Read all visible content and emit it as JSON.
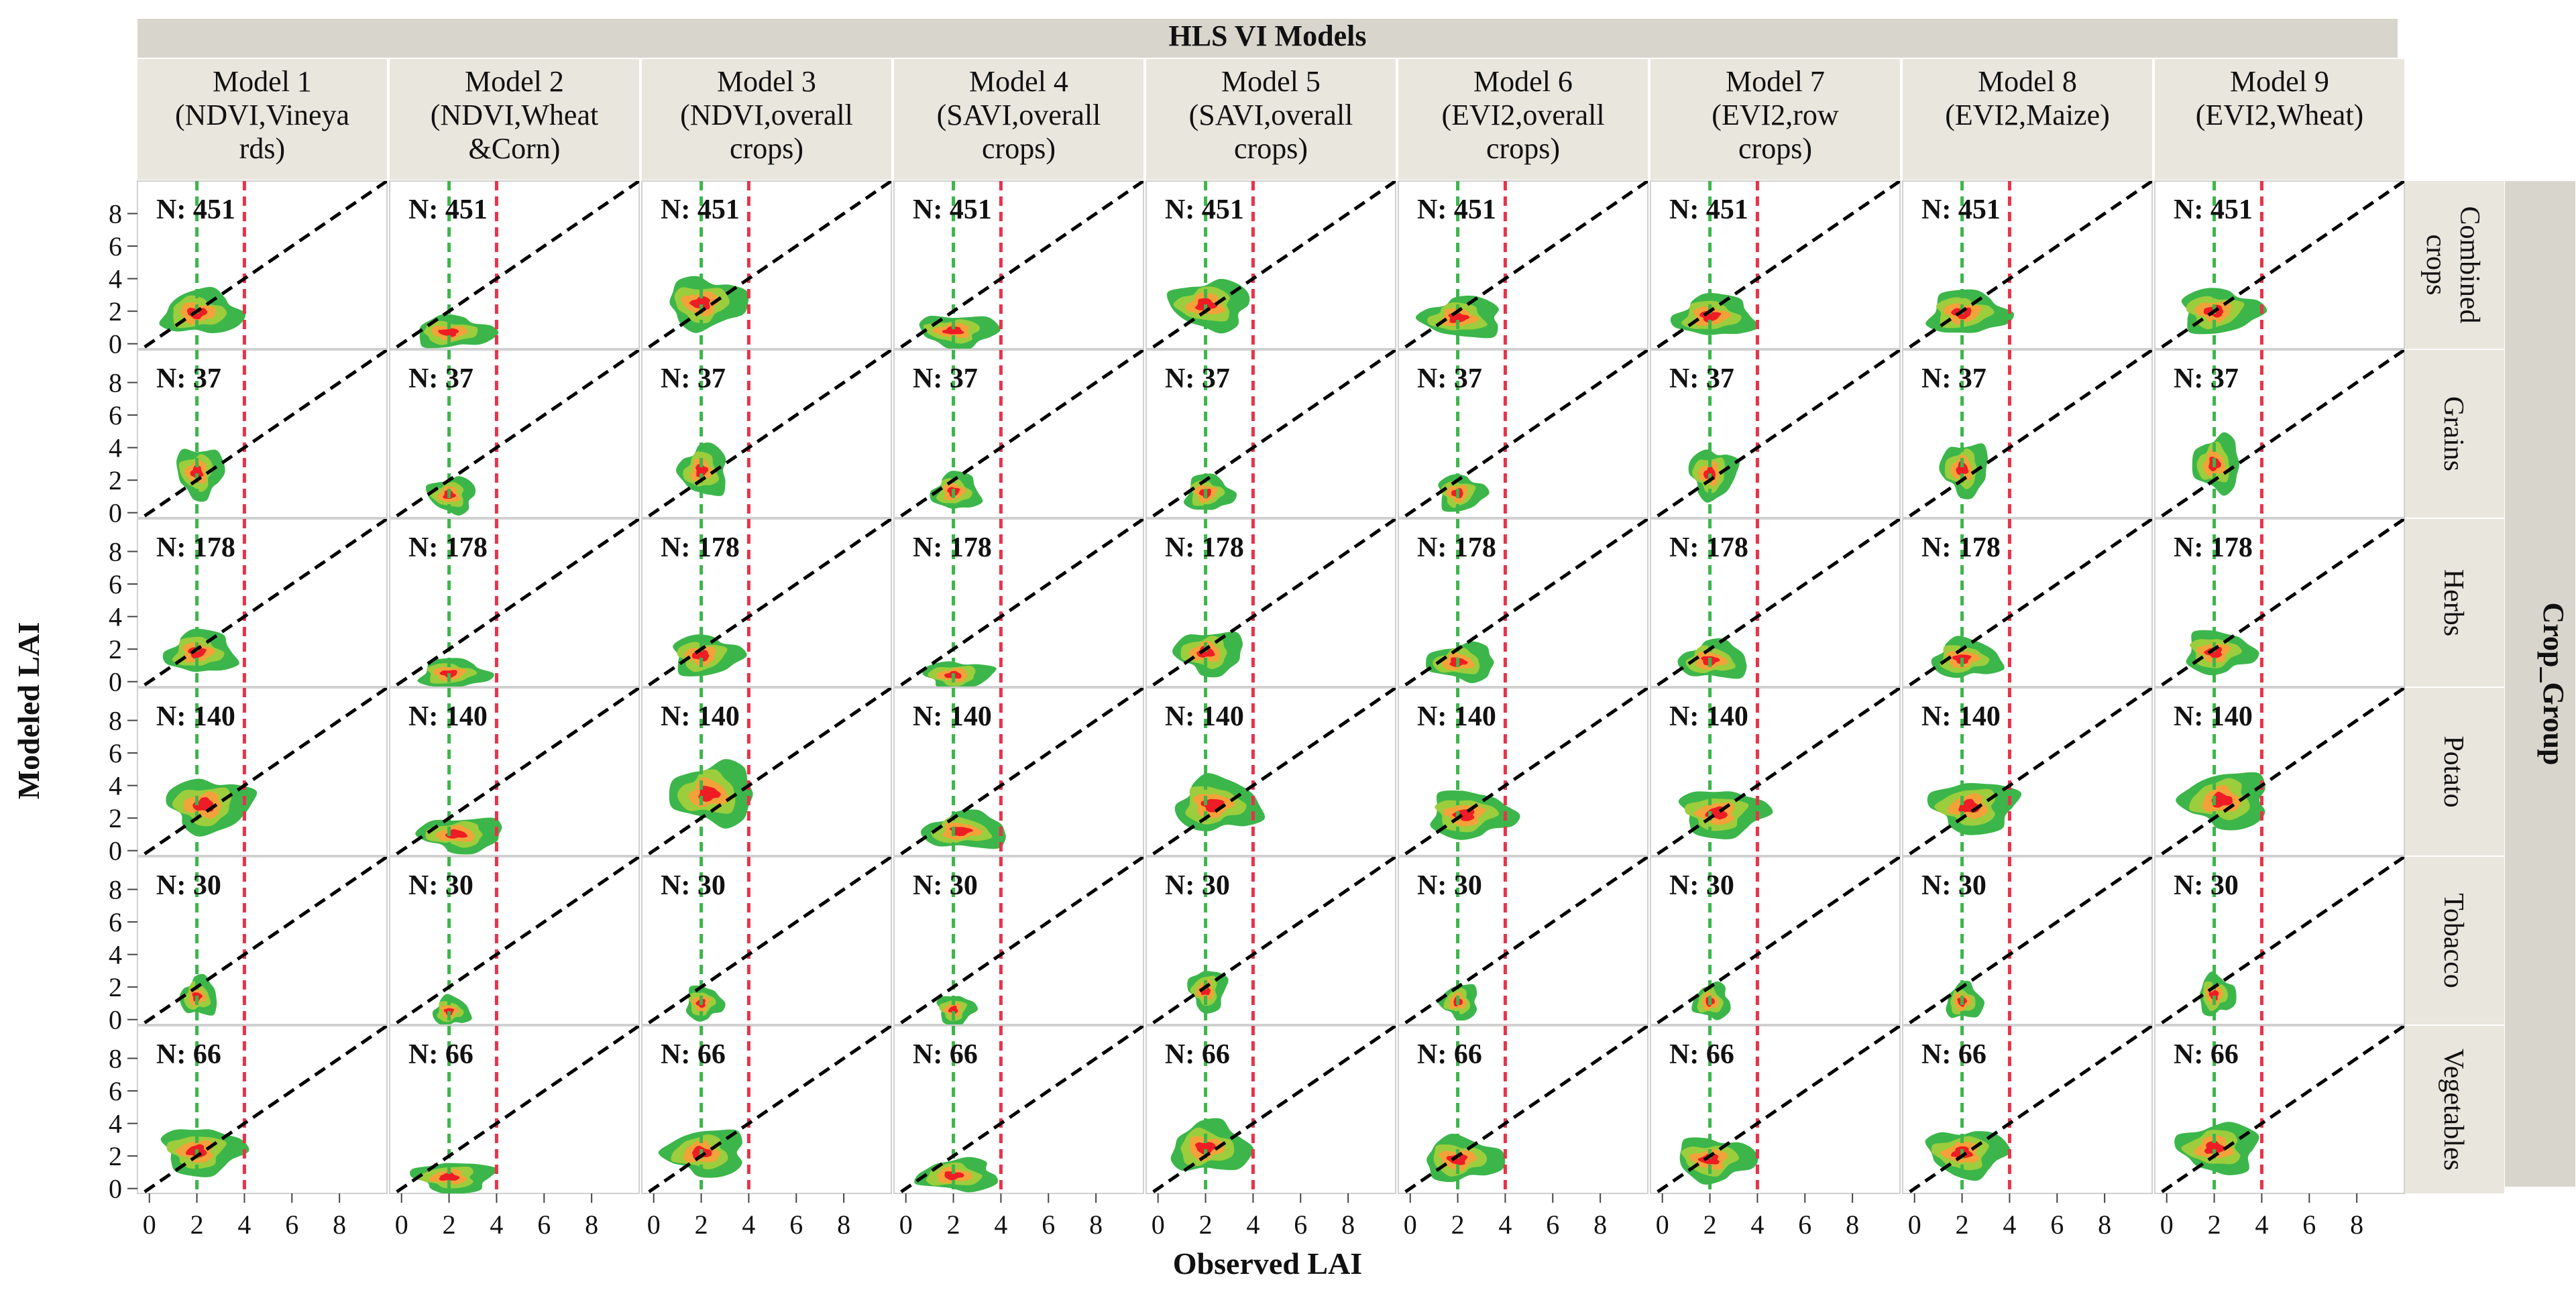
{
  "colors": {
    "outer_density": "#3cb64a",
    "mid_density": "#9ccd3c",
    "inner_density": "#f3a23a",
    "core_density": "#ee1c25",
    "green_reference_line": "#3cb64a",
    "red_reference_line": "#e8334a",
    "identity_line": "#000000",
    "strip_background": "#e8e6dd",
    "outer_strip_background": "#d8d6cc"
  },
  "chart_data": {
    "type": "contour-density-facet-grid",
    "title": "HLS VI Models",
    "xlabel": "Observed LAI",
    "ylabel": "Modeled LAI",
    "row_group_label": "Crop_Group",
    "xlim": [
      -0.5,
      10
    ],
    "ylim": [
      -0.3,
      10
    ],
    "x_ticks": [
      "0",
      "2",
      "4",
      "6",
      "8"
    ],
    "y_ticks": [
      "0",
      "2",
      "4",
      "6",
      "8"
    ],
    "reference_lines": {
      "green_vertical_x": 2,
      "red_vertical_x": 4,
      "diagonal": "1:1 line (y = x)"
    },
    "columns": [
      {
        "label": [
          "Model 1",
          "(NDVI,Vineya",
          "rds)"
        ]
      },
      {
        "label": [
          "Model 2",
          "(NDVI,Wheat",
          "&Corn)"
        ]
      },
      {
        "label": [
          "Model 3",
          "(NDVI,overall",
          "crops)"
        ]
      },
      {
        "label": [
          "Model 4",
          "(SAVI,overall",
          "crops)"
        ]
      },
      {
        "label": [
          "Model 5",
          "(SAVI,overall",
          "crops)"
        ]
      },
      {
        "label": [
          "Model 6",
          "(EVI2,overall",
          "crops)"
        ]
      },
      {
        "label": [
          "Model 7",
          "(EVI2,row",
          "crops)"
        ]
      },
      {
        "label": [
          "Model 8",
          "(EVI2,Maize)"
        ]
      },
      {
        "label": [
          "Model 9",
          "(EVI2,Wheat)"
        ]
      }
    ],
    "rows": [
      {
        "label": [
          "Combined",
          "crops"
        ],
        "n_label": "N: 451"
      },
      {
        "label": [
          "Grains"
        ],
        "n_label": "N: 37"
      },
      {
        "label": [
          "Herbs"
        ],
        "n_label": "N: 178"
      },
      {
        "label": [
          "Potato"
        ],
        "n_label": "N: 140"
      },
      {
        "label": [
          "Tobacco"
        ],
        "n_label": "N: 30"
      },
      {
        "label": [
          "Vegetables"
        ],
        "n_label": "N: 66"
      }
    ],
    "density_centers_modeled_lai": [
      [
        1.9,
        0.7,
        2.5,
        0.8,
        2.4,
        1.6,
        1.7,
        1.9,
        2.0
      ],
      [
        2.5,
        1.1,
        2.6,
        1.3,
        1.2,
        1.2,
        2.4,
        2.7,
        3.0
      ],
      [
        1.8,
        0.5,
        1.6,
        0.4,
        1.8,
        1.2,
        1.3,
        1.4,
        1.8
      ],
      [
        2.8,
        1.0,
        3.5,
        1.2,
        2.8,
        2.2,
        2.3,
        2.7,
        3.1
      ],
      [
        1.4,
        0.5,
        1.0,
        0.6,
        1.8,
        1.1,
        1.1,
        1.1,
        1.5
      ],
      [
        2.3,
        0.7,
        2.2,
        0.8,
        2.5,
        1.8,
        1.8,
        2.2,
        2.5
      ]
    ]
  }
}
